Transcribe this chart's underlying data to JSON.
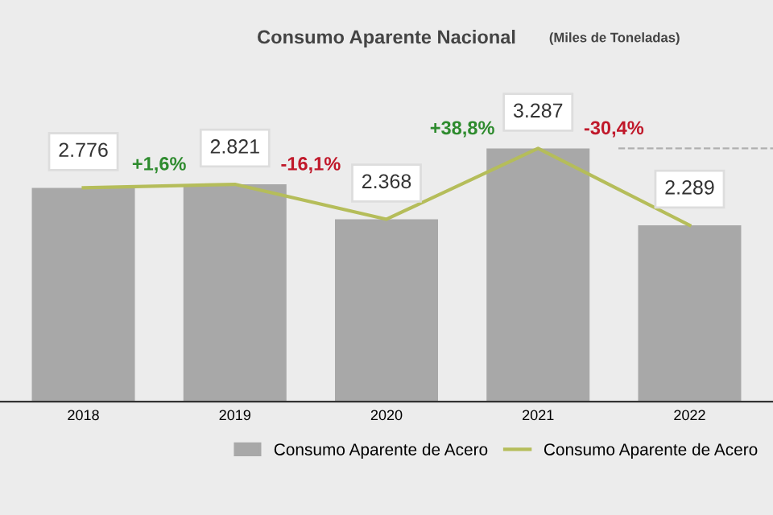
{
  "chart_data": {
    "type": "bar",
    "title": "Consumo Aparente Nacional",
    "subtitle": "(Miles de Toneladas)",
    "categories": [
      "2018",
      "2019",
      "2020",
      "2021",
      "2022"
    ],
    "series": [
      {
        "name": "Consumo Aparente de Acero",
        "color": "#a8a8a8",
        "values": [
          2776,
          2821,
          2368,
          3287,
          2289
        ],
        "value_labels": [
          "2.776",
          "2.821",
          "2.368",
          "3.287",
          "2.289"
        ]
      },
      {
        "name": "Consumo Aparente de Acero",
        "type": "line",
        "color": "#b5bd5a",
        "values": [
          2776,
          2821,
          2368,
          3287,
          2289
        ]
      }
    ],
    "annotations": [
      "+1,6%",
      "-16,1%",
      "+38,8%",
      "-30,4%"
    ],
    "ref_lines": [
      {
        "axis": "y",
        "value": 3287,
        "color": "#b0b0b0",
        "line_style": "dashed"
      }
    ],
    "tick_labels": "x",
    "grid": false,
    "legend": "bottom right",
    "marker": "none",
    "line_style": "solid"
  }
}
